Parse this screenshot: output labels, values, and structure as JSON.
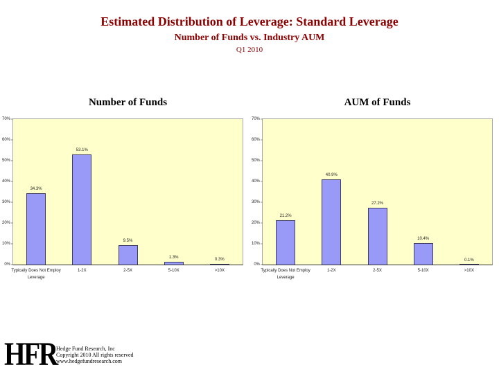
{
  "header": {
    "title": "Estimated Distribution of Leverage: Standard Leverage",
    "subtitle": "Number of Funds vs. Industry AUM",
    "period": "Q1 2010",
    "title_color": "#8B0000"
  },
  "chart_data": [
    {
      "type": "bar",
      "title": "Number of Funds",
      "categories": [
        "Typically Does Not Employ\nLeverage",
        "1-2X",
        "2-5X",
        "5-10X",
        ">10X"
      ],
      "values": [
        34.3,
        53.1,
        9.5,
        1.3,
        0.3
      ],
      "value_labels": [
        "34.3%",
        "53.1%",
        "9.5%",
        "1.3%",
        "0.3%"
      ],
      "ylim": [
        0,
        70
      ],
      "ytick_step": 10,
      "ytick_labels": [
        "0%",
        "10%",
        "20%",
        "30%",
        "40%",
        "50%",
        "60%",
        "70%"
      ],
      "bar_color": "#9999F8",
      "plot_bg": "#FFFFCC",
      "grid": false,
      "legend": "none"
    },
    {
      "type": "bar",
      "title": "AUM of Funds",
      "categories": [
        "Typically Does Not Employ\nLeverage",
        "1-2X",
        "2-5X",
        "5-10X",
        ">10X"
      ],
      "values": [
        21.2,
        40.9,
        27.2,
        10.4,
        0.1
      ],
      "value_labels": [
        "21.2%",
        "40.9%",
        "27.2%",
        "10.4%",
        "0.1%"
      ],
      "ylim": [
        0,
        70
      ],
      "ytick_step": 10,
      "ytick_labels": [
        "0%",
        "10%",
        "20%",
        "30%",
        "40%",
        "50%",
        "60%",
        "70%"
      ],
      "bar_color": "#9999F8",
      "plot_bg": "#FFFFCC",
      "grid": false,
      "legend": "none"
    }
  ],
  "footer": {
    "logo": "HFR",
    "lines": [
      "Hedge Fund Research, Inc",
      "Copyright 2010   All rights reserved",
      "www.hedgefundresearch.com"
    ]
  }
}
